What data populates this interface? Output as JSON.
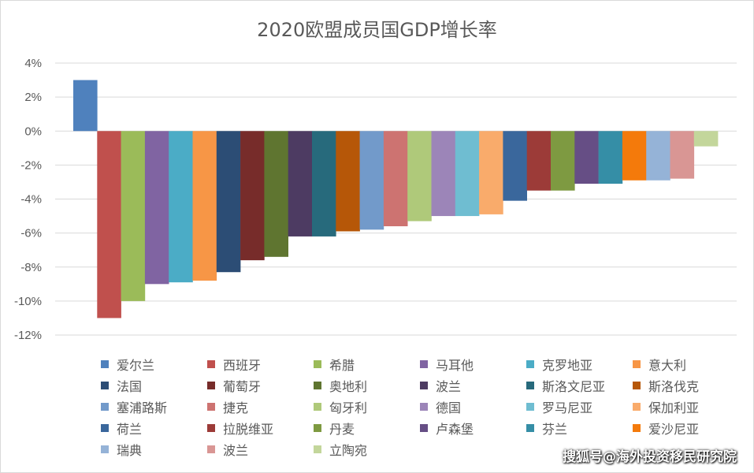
{
  "chart_data": {
    "type": "bar",
    "title": "2020欧盟成员国GDP增长率",
    "categories": [
      "爱尔兰",
      "西班牙",
      "希腊",
      "马耳他",
      "克罗地亚",
      "意大利",
      "法国",
      "葡萄牙",
      "奥地利",
      "波兰",
      "斯洛文尼亚",
      "斯洛伐克",
      "塞浦路斯",
      "捷克",
      "匈牙利",
      "德国",
      "罗马尼亚",
      "保加利亚",
      "荷兰",
      "拉脱维亚",
      "丹麦",
      "卢森堡",
      "芬兰",
      "爱沙尼亚",
      "瑞典",
      "波兰",
      "立陶宛"
    ],
    "values": [
      3.0,
      -11.0,
      -10.0,
      -9.0,
      -8.9,
      -8.8,
      -8.3,
      -7.6,
      -7.4,
      -6.2,
      -6.2,
      -5.9,
      -5.8,
      -5.6,
      -5.3,
      -5.0,
      -5.0,
      -4.9,
      -4.1,
      -3.5,
      -3.5,
      -3.1,
      -3.1,
      -2.9,
      -2.9,
      -2.8,
      -0.9
    ],
    "colors": [
      "#4f81bd",
      "#c0504d",
      "#9bbb59",
      "#8064a2",
      "#4bacc6",
      "#f79646",
      "#2c4d75",
      "#772c2a",
      "#5f7530",
      "#4d3b62",
      "#276a7c",
      "#b65708",
      "#729aca",
      "#cd7371",
      "#afc97a",
      "#9c85b8",
      "#6fbdd1",
      "#f9ab6b",
      "#3a679c",
      "#9c3b38",
      "#7e9a41",
      "#664e85",
      "#358ea6",
      "#f47a0b",
      "#95b3d7",
      "#d99694",
      "#c3d69b"
    ],
    "ylim": [
      -12,
      4
    ],
    "yticks": [
      "4%",
      "2%",
      "0%",
      "-2%",
      "-4%",
      "-6%",
      "-8%",
      "-10%",
      "-12%"
    ],
    "ytick_values": [
      4,
      2,
      0,
      -2,
      -4,
      -6,
      -8,
      -10,
      -12
    ],
    "grid": true,
    "legend_placement": "bottom"
  },
  "watermark": "搜狐号@海外投资移民研究院"
}
